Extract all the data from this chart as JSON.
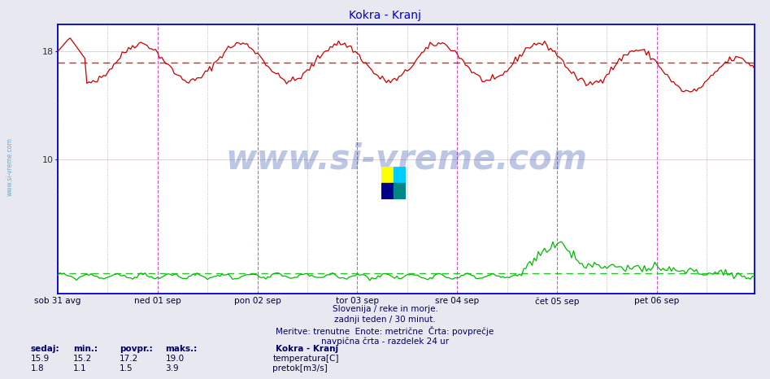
{
  "title": "Kokra - Kranj",
  "title_color": "#0000cc",
  "background_color": "#e8e8f0",
  "plot_bg_color": "#ffffff",
  "x_labels": [
    "sob 31 avg",
    "ned 01 sep",
    "pon 02 sep",
    "tor 03 sep",
    "sre 04 sep",
    "čet 05 sep",
    "pet 06 sep"
  ],
  "y_ticks": [
    10,
    18
  ],
  "y_min": 0,
  "y_max": 20,
  "avg_line_temp": 17.2,
  "avg_line_color_temp": "#cc0000",
  "avg_line_flow": 1.5,
  "avg_line_color_flow": "#00bb00",
  "temp_line_color": "#cc0000",
  "flow_line_color": "#00bb00",
  "grid_color": "#ddcccc",
  "grid_color_x": "#ccccdd",
  "axis_color": "#0000cc",
  "vline_color_midnight": "#cc44cc",
  "vline_color_noon": "#888888",
  "watermark_text": "www.si-vreme.com",
  "watermark_color": "#2244aa",
  "watermark_alpha": 0.3,
  "sidebar_text": "www.si-vreme.com",
  "sidebar_color": "#3399cc",
  "footer_line1": "Slovenija / reke in morje.",
  "footer_line2": "zadnji teden / 30 minut.",
  "footer_line3": "Meritve: trenutne  Enote: metrične  Črta: povprečje",
  "footer_line4": "navpična črta - razdelek 24 ur",
  "footer_color": "#000066",
  "legend_title": "Kokra - Kranj",
  "legend_color": "#000066",
  "stat_headers": [
    "sedaj:",
    "min.:",
    "povpr.:",
    "maks.:"
  ],
  "stat_temp": [
    15.9,
    15.2,
    17.2,
    19.0
  ],
  "stat_flow": [
    1.8,
    1.1,
    1.5,
    3.9
  ],
  "label_temp": "temperatura[C]",
  "label_flow": "pretok[m3/s]",
  "n_points": 336,
  "days": 7,
  "points_per_day": 48
}
